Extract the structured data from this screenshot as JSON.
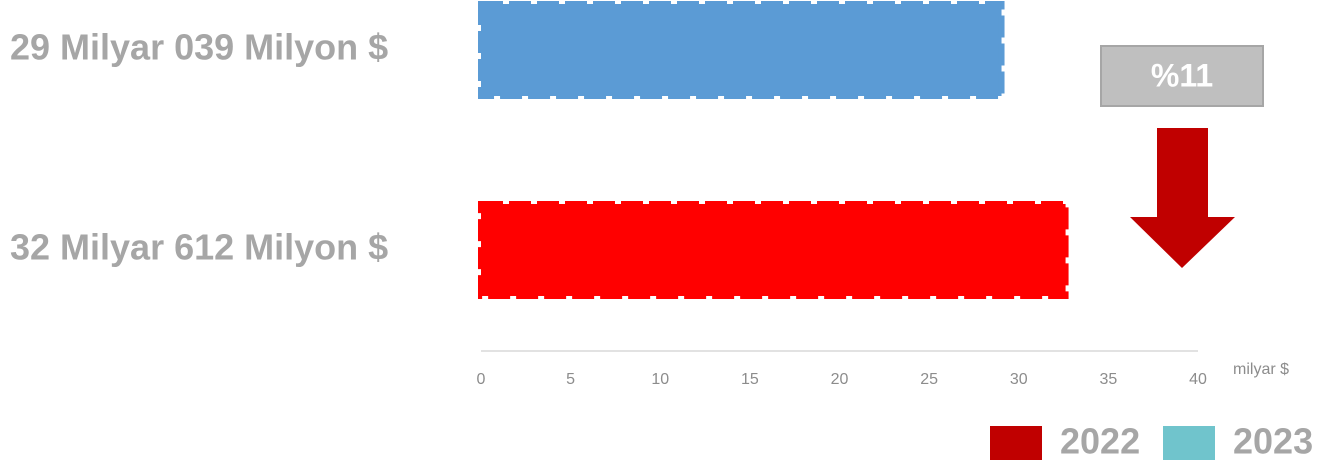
{
  "chart_data": {
    "type": "bar",
    "orientation": "horizontal",
    "values": [
      29.039,
      32.612
    ],
    "value_labels": [
      "29 Milyar 039 Milyon $",
      "32 Milyar 612 Milyon $"
    ],
    "colors": [
      "#5b9bd5",
      "#ff0000"
    ],
    "xlim": [
      0,
      40
    ],
    "xticks": [
      0,
      5,
      10,
      15,
      20,
      25,
      30,
      35,
      40
    ],
    "xlabel": "milyar $",
    "annotation": "%11",
    "legend": [
      {
        "name": "2022",
        "color": "#c00000"
      },
      {
        "name": "2023",
        "color": "#70c4cc"
      }
    ]
  }
}
